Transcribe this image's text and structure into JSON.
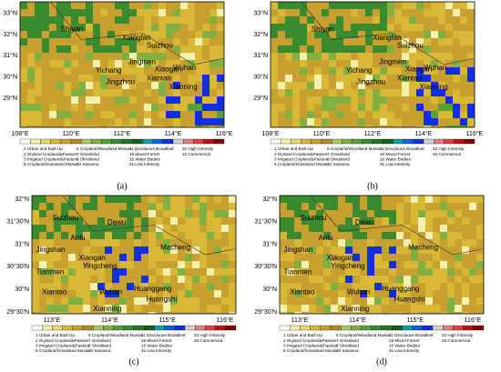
{
  "panels": [
    {
      "label": "(a)",
      "lat": [
        "29°N",
        "30°N",
        "31°N",
        "32°N",
        "33°N"
      ],
      "lon": [
        "108°E",
        "110°E",
        "112°E",
        "114°E",
        "116°E"
      ],
      "cities": [
        "Shiyan",
        "Xiangfan",
        "Suizhou",
        "Jingmen",
        "Xiaogan",
        "Yichang",
        "Xiantao",
        "Wuhan",
        "Jingzhou",
        "Xianning"
      ]
    },
    {
      "label": "(b)",
      "lat": [
        "29°N",
        "30°N",
        "31°N",
        "32°N",
        "33°N"
      ],
      "lon": [
        "108°E",
        "110°E",
        "112°E",
        "114°E",
        "116°E"
      ],
      "cities": [
        "Shiyan",
        "Xiangfan",
        "Suizhou",
        "Jingmen",
        "Xiaogan",
        "Yichang",
        "Xiantao",
        "Wuhan",
        "Jingzhou",
        "Xianning"
      ]
    },
    {
      "label": "(c)",
      "lat": [
        "29°30'N",
        "30°N",
        "30°30'N",
        "31°N",
        "31°30'N",
        "32°N"
      ],
      "lon": [
        "113°E",
        "114°E",
        "115°E",
        "116°E"
      ],
      "cities": [
        "Suizhou",
        "Dawu",
        "Anlu",
        "Jingshan",
        "Macheng",
        "Xiaogan",
        "Yingcheng",
        "Tianmen",
        "Xiantao",
        "Wuhan",
        "Huanggang",
        "Huangshi",
        "Xianning"
      ]
    },
    {
      "label": "(d)",
      "lat": [
        "29°30'N",
        "30°N",
        "30°30'N",
        "31°N",
        "31°30'N",
        "32°N"
      ],
      "lon": [
        "113°E",
        "114°E",
        "115°E",
        "116°E"
      ],
      "cities": [
        "Suizhou",
        "Dawu",
        "Anlu",
        "Jingshan",
        "Macheng",
        "Xiaogan",
        "Yingcheng",
        "Tianmen",
        "Xiantao",
        "Wuhan",
        "Huanggang",
        "Huangshi",
        "Xianning"
      ]
    }
  ],
  "legend": {
    "entries": [
      "1 Urban and Built-Up",
      "2 Dryland Cropland&Pasture",
      "3 Irrigated Cropland&Pasture",
      "5 Cropland/Grassland Mosaic",
      "6 Cropland/Woodland Mosaic",
      "7 Grassland",
      "8 Shrubland",
      "10 Savanna",
      "11 Deciduous Broadleaf",
      "15 Mixed Forest",
      "16 Water Bodies",
      "31 Low Intensity",
      "32 High Intensity",
      "33 Commercial"
    ],
    "colors": [
      "#ffffff",
      "#f5f0b0",
      "#e8d870",
      "#d9b836",
      "#c8a030",
      "#b08828",
      "#a8c860",
      "#80b040",
      "#58a038",
      "#3a8a30",
      "#2a7028",
      "#186018",
      "#10a0a0",
      "#1060e0",
      "#1030e0",
      "#d0d0d0",
      "#e08080",
      "#e04040",
      "#c01010",
      "#800000"
    ]
  }
}
